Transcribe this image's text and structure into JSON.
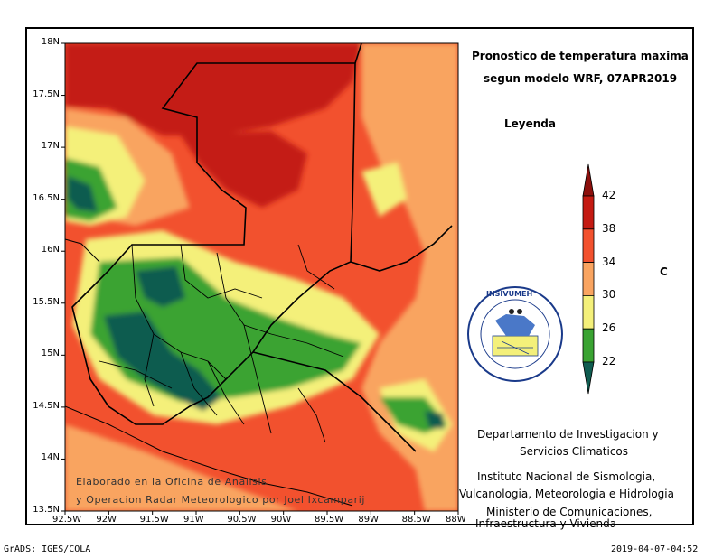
{
  "title_line1": "Pronostico de temperatura maxima",
  "title_line2": "segun modelo WRF, 07APR2019",
  "legend": {
    "title": "Leyenda",
    "unit": "C",
    "levels": [
      "22",
      "26",
      "30",
      "34",
      "38",
      "42"
    ],
    "colors": [
      "#0f5c50",
      "#3aa332",
      "#f4f07a",
      "#f9a460",
      "#f2512e",
      "#c41a12",
      "#8c0f0c"
    ]
  },
  "logo": {
    "text": "INSIVUMEH"
  },
  "info": {
    "dept_line1": "Departamento de Investigacion y",
    "dept_line2": "Servicios Climaticos",
    "inst_line1": "Instituto Nacional de Sismologia,",
    "inst_line2": "Vulcanologia, Meteorologia e Hidrologia",
    "min_line1": "Ministerio de Comunicaciones,",
    "min_line2": "Infraestructura y Vivienda"
  },
  "credit": {
    "line1": "Elaborado en la Oficina de Analisis",
    "line2": "y Operacion Radar Meteorologico por Joel Ixcamparij"
  },
  "axes": {
    "lat_labels": [
      "18N",
      "17.5N",
      "17N",
      "16.5N",
      "16N",
      "15.5N",
      "15N",
      "14.5N",
      "14N",
      "13.5N"
    ],
    "lon_labels": [
      "92.5W",
      "92W",
      "91.5W",
      "91W",
      "90.5W",
      "90W",
      "89.5W",
      "89W",
      "88.5W",
      "88W"
    ]
  },
  "footer": {
    "left": "GrADS: IGES/COLA",
    "right": "2019-04-07-04:52"
  }
}
